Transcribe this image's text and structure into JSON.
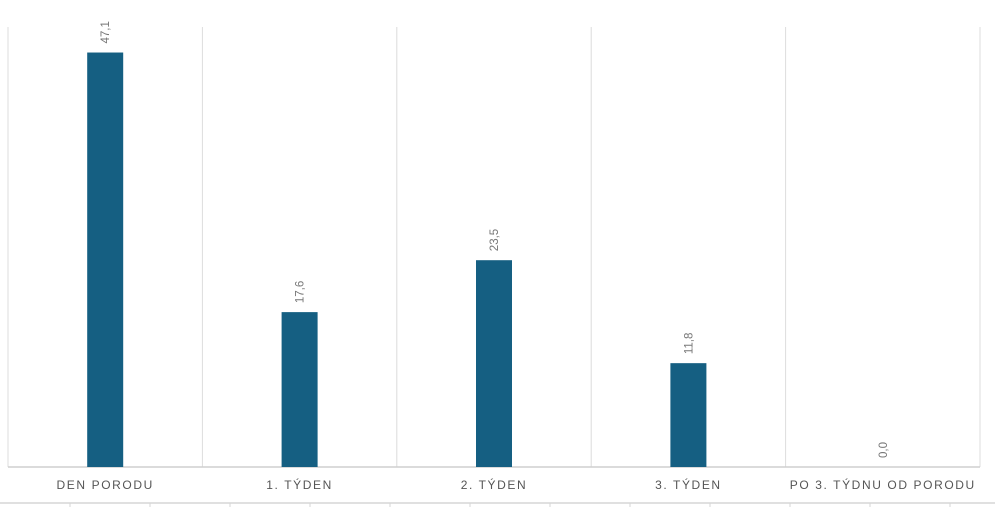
{
  "chart_data": {
    "type": "bar",
    "categories": [
      "DEN PORODU",
      "1. TÝDEN",
      "2. TÝDEN",
      "3. TÝDEN",
      "PO 3. TÝDNU OD PORODU"
    ],
    "values": [
      47.1,
      17.6,
      23.5,
      11.8,
      0.0
    ],
    "data_labels": [
      "47,1",
      "17,6",
      "23,5",
      "11,8",
      "0,0"
    ],
    "title": "",
    "xlabel": "",
    "ylabel": "",
    "ylim": [
      0,
      50
    ],
    "grid": "vertical category separators",
    "legend": "none",
    "bar_color": "#155f82"
  }
}
